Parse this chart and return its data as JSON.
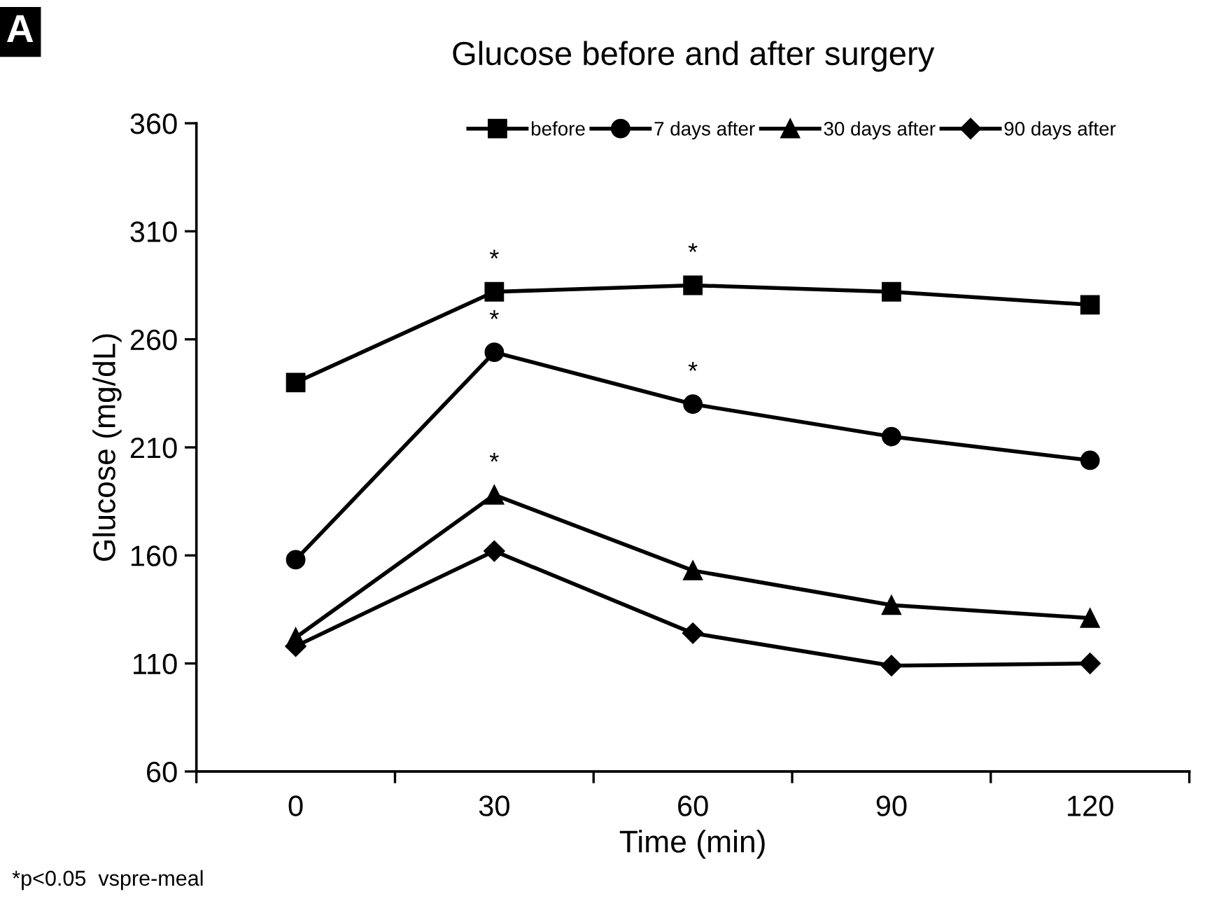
{
  "chart_data": {
    "type": "line",
    "title": "Glucose before and after surgery",
    "xlabel": "Time (min)",
    "ylabel": "Glucose (mg/dL)",
    "categories": [
      "0",
      "30",
      "60",
      "90",
      "120"
    ],
    "series": [
      {
        "name": "before",
        "color": "#000000",
        "marker": "square",
        "values": [
          240,
          282,
          285,
          282,
          276
        ]
      },
      {
        "name": "7 days after",
        "color": "#000000",
        "marker": "circle",
        "values": [
          158,
          254,
          230,
          215,
          204
        ]
      },
      {
        "name": "30 days after",
        "color": "#000000",
        "marker": "triangle",
        "values": [
          122,
          188,
          153,
          137,
          131
        ]
      },
      {
        "name": "90 days after",
        "color": "#000000",
        "marker": "diamond",
        "values": [
          118,
          162,
          124,
          109,
          110
        ]
      }
    ],
    "ylim": [
      60,
      360
    ],
    "yticks": [
      60,
      110,
      160,
      210,
      260,
      310,
      360
    ],
    "grid": false,
    "legend": "top",
    "line_style": "solid",
    "annotations": [
      "A",
      "*p<0.05  vspre-meal",
      {
        "text": "*",
        "x": "30",
        "y": 282
      },
      {
        "text": "*",
        "x": "60",
        "y": 285
      },
      {
        "text": "*",
        "x": "30",
        "y": 254
      },
      {
        "text": "*",
        "x": "60",
        "y": 230
      },
      {
        "text": "*",
        "x": "30",
        "y": 188
      }
    ]
  }
}
